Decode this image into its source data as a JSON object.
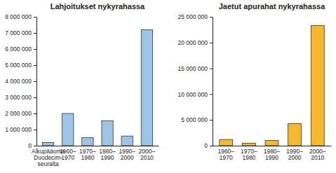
{
  "chart_data": [
    {
      "type": "bar",
      "title": "Lahjoitukset nykyrahassa",
      "categories": [
        "Alkupääoma Duodecim-seuralta",
        "1960–1970",
        "1970–1980",
        "1980–1990",
        "1990–2000",
        "2000–2010"
      ],
      "values": [
        200000,
        2000000,
        500000,
        1550000,
        600000,
        7200000
      ],
      "color": "#9dc3e6",
      "ylim": [
        0,
        8000000
      ],
      "yticks": [
        0,
        {
          "value": 1000000,
          "label": "1 000 000"
        },
        {
          "value": 2000000,
          "label": "2 000 000"
        },
        {
          "value": 3000000,
          "label": "3 000 000"
        },
        {
          "value": 4000000,
          "label": "4 000 000"
        },
        {
          "value": 5000000,
          "label": "5 000 000"
        },
        {
          "value": 6000000,
          "label": "6 000 000"
        },
        {
          "value": 7000000,
          "label": "7 000 000"
        },
        {
          "value": 8000000,
          "label": "8 000 000"
        }
      ],
      "grid": false
    },
    {
      "type": "bar",
      "title": "Jaetut apurahat nykyrahassa",
      "categories": [
        "1960–1970",
        "1970–1980",
        "1980–1990",
        "1990–2000",
        "2000–2010"
      ],
      "values": [
        1200000,
        500000,
        1000000,
        4300000,
        23300000
      ],
      "color": "#f7b82d",
      "ylim": [
        0,
        25000000
      ],
      "yticks": [
        0,
        {
          "value": 5000000,
          "label": "5 000 000"
        },
        {
          "value": 10000000,
          "label": "10 000 000"
        },
        {
          "value": 15000000,
          "label": "15 000 000"
        },
        {
          "value": 20000000,
          "label": "20 000 000"
        },
        {
          "value": 25000000,
          "label": "25 000 000"
        }
      ],
      "grid": false
    }
  ]
}
